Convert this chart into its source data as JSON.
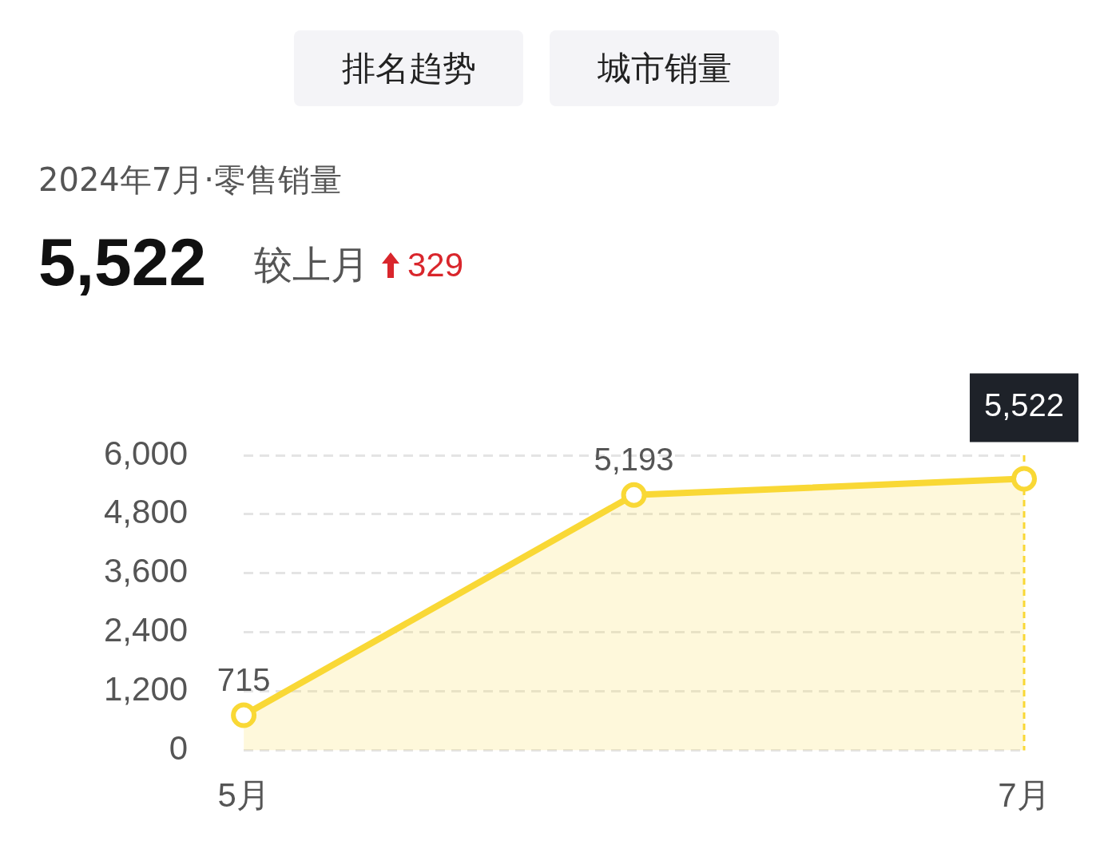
{
  "chart_data": {
    "type": "area",
    "title": "2024年7月·零售销量",
    "categories": [
      "5月",
      null,
      "7月"
    ],
    "series": [
      {
        "values": [
          715,
          5193,
          5522
        ],
        "value_labels": [
          "715",
          "5,193",
          "5,522"
        ],
        "color": "#f9d835"
      }
    ],
    "ylim": [
      0,
      6000
    ],
    "yticks": [
      0,
      {
        "value": 1200,
        "label": "1,200"
      },
      {
        "value": 2400,
        "label": "2,400"
      },
      {
        "value": 3600,
        "label": "3,600"
      },
      {
        "value": 4800,
        "label": "4,800"
      },
      {
        "value": 6000,
        "label": "6,000"
      }
    ],
    "grid": "y",
    "marker": "circle",
    "legend": false,
    "annotations": [
      "排名趋势",
      "城市销量",
      "5,522",
      "较上月",
      "329"
    ],
    "ref_lines": [
      {
        "axis": "x",
        "value": "7月",
        "color": "#f9d835",
        "line_style": "dashed"
      }
    ]
  }
}
